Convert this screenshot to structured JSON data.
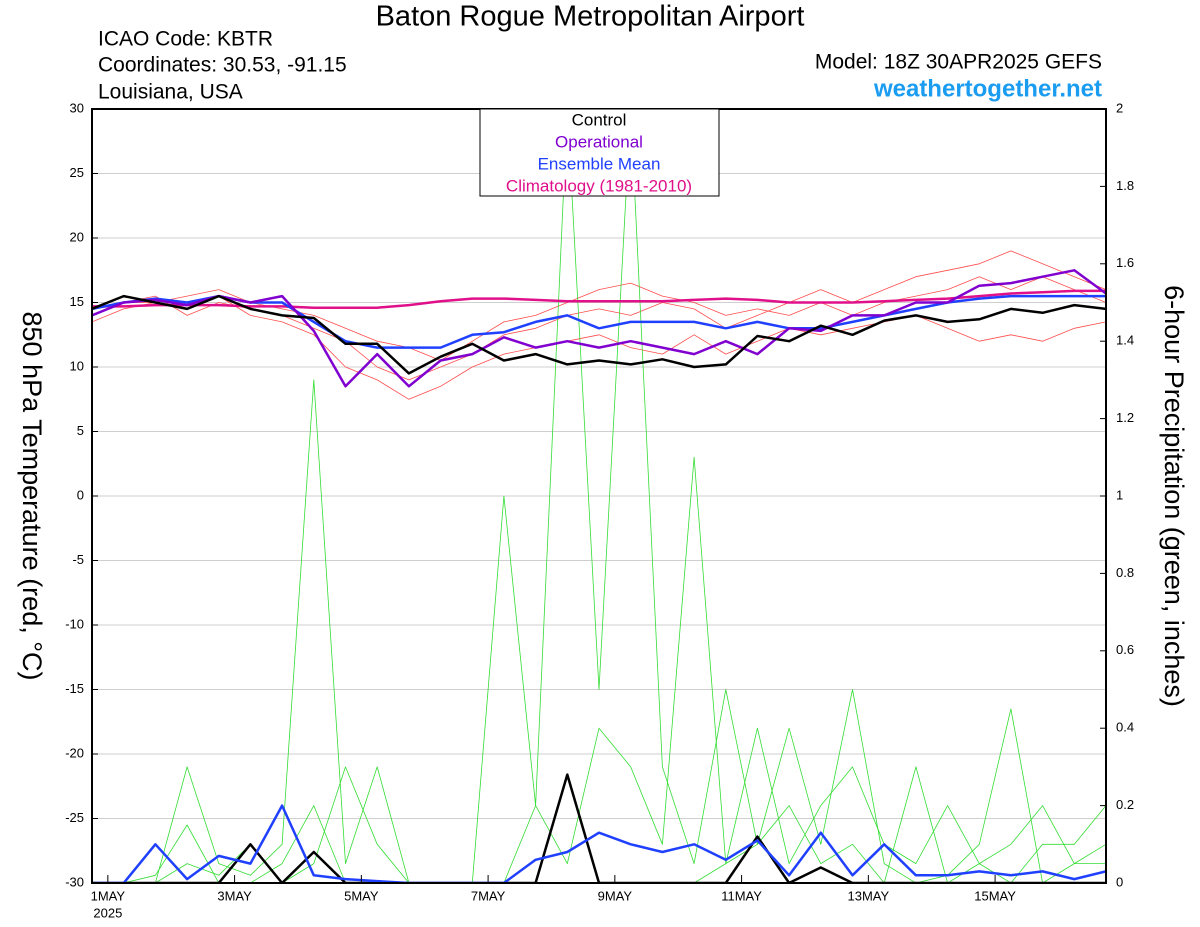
{
  "chart_data": {
    "type": "line",
    "title": "Baton Rogue Metropolitan Airport",
    "info_left": [
      "ICAO Code: KBTR",
      "Coordinates: 30.53, -91.15",
      "Louisiana, USA"
    ],
    "model": "Model: 18Z 30APR2025 GEFS",
    "source": "weathertogether.net",
    "y_label": "850 hPa Temperature (red, °C)",
    "y2_label": "6-hour Precipitation (green, inches)",
    "x": [
      -0.25,
      0.25,
      0.75,
      1.25,
      1.75,
      2.25,
      2.75,
      3.25,
      3.75,
      4.25,
      4.75,
      5.25,
      5.75,
      6.25,
      6.75,
      7.25,
      7.75,
      8.25,
      8.75,
      9.25,
      9.75,
      10.25,
      10.75,
      11.25,
      11.75,
      12.25,
      12.75,
      13.25,
      13.75,
      14.25,
      14.75,
      15.25,
      15.75
    ],
    "xlim": [
      -0.25,
      15.75
    ],
    "xticks": [
      {
        "value": 0,
        "label": "1MAY"
      },
      {
        "value": 2,
        "label": "3MAY"
      },
      {
        "value": 4,
        "label": "5MAY"
      },
      {
        "value": 6,
        "label": "7MAY"
      },
      {
        "value": 8,
        "label": "9MAY"
      },
      {
        "value": 10,
        "label": "11MAY"
      },
      {
        "value": 12,
        "label": "13MAY"
      },
      {
        "value": 14,
        "label": "15MAY"
      }
    ],
    "xtick_sublabel": "2025",
    "ylim": [
      -30,
      30
    ],
    "yticks": [
      -30,
      -25,
      -20,
      -15,
      -10,
      -5,
      0,
      5,
      10,
      15,
      20,
      25,
      30
    ],
    "y2lim": [
      0,
      2
    ],
    "y2ticks": [
      0,
      0.2,
      0.4,
      0.6,
      0.8,
      1,
      1.2,
      1.4,
      1.6,
      1.8,
      2
    ],
    "grid": true,
    "legend": "top",
    "series": [
      {
        "color": "#ff4d4d",
        "width": 0.8,
        "values": [
          14,
          15,
          15.5,
          14,
          15,
          14.5,
          14,
          13,
          12,
          10,
          9,
          10,
          11,
          12.5,
          13,
          14,
          14.5,
          14,
          15,
          14.5,
          13,
          14,
          15,
          16,
          15,
          16,
          17,
          17.5,
          18,
          19,
          18,
          17,
          16
        ]
      },
      {
        "color": "#ff4d4d",
        "width": 0.8,
        "values": [
          13.5,
          14.5,
          15,
          15.5,
          16,
          15,
          14.5,
          14,
          13,
          12,
          11.5,
          10.5,
          12,
          13.5,
          14,
          15,
          16,
          16.5,
          15.5,
          15,
          14,
          14.5,
          14,
          15,
          14,
          15,
          15.5,
          16,
          17,
          16,
          17,
          16,
          15
        ]
      },
      {
        "color": "#ff4d4d",
        "width": 0.8,
        "values": [
          14,
          15,
          15,
          14.5,
          15.5,
          14,
          13.5,
          12.5,
          10,
          9,
          7.5,
          8.5,
          10,
          11,
          11.5,
          12,
          12.5,
          11.5,
          11,
          12.5,
          11,
          12,
          13,
          12.5,
          13,
          13.5,
          14,
          13,
          12,
          12.5,
          12,
          13,
          13.5
        ]
      },
      {
        "color": "#33dd33",
        "width": 0.8,
        "axis": "y2",
        "values": [
          0,
          0,
          0,
          0.3,
          0.05,
          0.02,
          0.1,
          1.3,
          0.05,
          0.3,
          0,
          0,
          0,
          0,
          0,
          0,
          0,
          0,
          0,
          0,
          0.05,
          0.1,
          0.4,
          0.1,
          0.5,
          0.05,
          0,
          0.02,
          0.1,
          0.45,
          0,
          0.05,
          0.1
        ]
      },
      {
        "color": "#33dd33",
        "width": 0.8,
        "axis": "y2",
        "values": [
          0,
          0,
          0,
          0.05,
          0.02,
          0.1,
          0,
          0.05,
          0.3,
          0.1,
          0,
          0,
          0,
          0,
          0.2,
          2,
          0.5,
          2,
          0.3,
          0.05,
          0.5,
          0.1,
          0.2,
          0.05,
          0.1,
          0,
          0.3,
          0,
          0.05,
          0,
          0.1,
          0.1,
          0.2
        ]
      },
      {
        "color": "#33dd33",
        "width": 0.8,
        "axis": "y2",
        "values": [
          0,
          0,
          0.02,
          0.15,
          0,
          0,
          0.05,
          0.2,
          0,
          0,
          0,
          0,
          0,
          1,
          0.2,
          0.05,
          0.4,
          0.3,
          0.1,
          1.1,
          0.05,
          0.4,
          0.05,
          0.2,
          0.3,
          0.1,
          0.05,
          0.2,
          0.05,
          0.1,
          0.2,
          0.05,
          0.05
        ]
      },
      {
        "color": "#000000",
        "width": 2.5,
        "axis": "y2",
        "values": [
          0,
          0,
          0,
          0,
          0,
          0.1,
          0,
          0.08,
          0,
          0,
          0,
          0,
          0,
          0,
          0,
          0.28,
          0,
          0,
          0,
          0,
          0,
          0.12,
          0,
          0.04,
          0,
          0,
          0,
          0,
          0,
          0,
          0,
          0,
          0
        ]
      },
      {
        "color": "#2040ff",
        "width": 2.5,
        "axis": "y2",
        "values": [
          0,
          0,
          0.1,
          0.01,
          0.07,
          0.05,
          0.2,
          0.02,
          0.01,
          0.005,
          0,
          0,
          0,
          0,
          0.06,
          0.08,
          0.13,
          0.1,
          0.08,
          0.1,
          0.06,
          0.11,
          0.02,
          0.13,
          0.02,
          0.1,
          0.02,
          0.02,
          0.03,
          0.02,
          0.03,
          0.01,
          0.03
        ]
      },
      {
        "name": "Climatology (1981-2010)",
        "color": "#e0108a",
        "width": 2.5,
        "values": [
          14.7,
          14.7,
          14.8,
          14.8,
          14.8,
          14.7,
          14.7,
          14.6,
          14.6,
          14.6,
          14.8,
          15.1,
          15.3,
          15.3,
          15.2,
          15.1,
          15.1,
          15.1,
          15.1,
          15.2,
          15.3,
          15.2,
          15,
          15,
          15,
          15.1,
          15.2,
          15.3,
          15.5,
          15.7,
          15.8,
          15.9,
          15.9
        ]
      },
      {
        "name": "Ensemble Mean",
        "color": "#2040ff",
        "width": 2.5,
        "values": [
          14.5,
          15,
          15.3,
          15,
          15.5,
          15,
          15,
          13.5,
          12,
          11.5,
          11.5,
          11.5,
          12.5,
          12.7,
          13.5,
          14,
          13,
          13.5,
          13.5,
          13.5,
          13,
          13.5,
          13,
          13,
          13.5,
          14,
          14.5,
          15,
          15.3,
          15.5,
          15.5,
          15.5,
          15.5
        ]
      },
      {
        "name": "Operational",
        "color": "#8000d0",
        "width": 2.5,
        "values": [
          14,
          15,
          15.2,
          14.8,
          15.5,
          15,
          15.5,
          12.8,
          8.5,
          11,
          8.5,
          10.5,
          11,
          12.3,
          11.5,
          12,
          11.5,
          12,
          11.5,
          11,
          12,
          11,
          13,
          12.8,
          14,
          14,
          15,
          15,
          16.3,
          16.5,
          17,
          17.5,
          15.7
        ]
      },
      {
        "name": "Control",
        "color": "#000000",
        "width": 2.5,
        "values": [
          14.5,
          15.5,
          15,
          14.5,
          15.5,
          14.5,
          14,
          13.8,
          11.8,
          11.8,
          9.5,
          10.8,
          11.8,
          10.5,
          11,
          10.2,
          10.5,
          10.2,
          10.6,
          10,
          10.2,
          12.4,
          12,
          13.2,
          12.5,
          13.6,
          14,
          13.5,
          13.7,
          14.5,
          14.2,
          14.8,
          14.5
        ]
      }
    ]
  }
}
